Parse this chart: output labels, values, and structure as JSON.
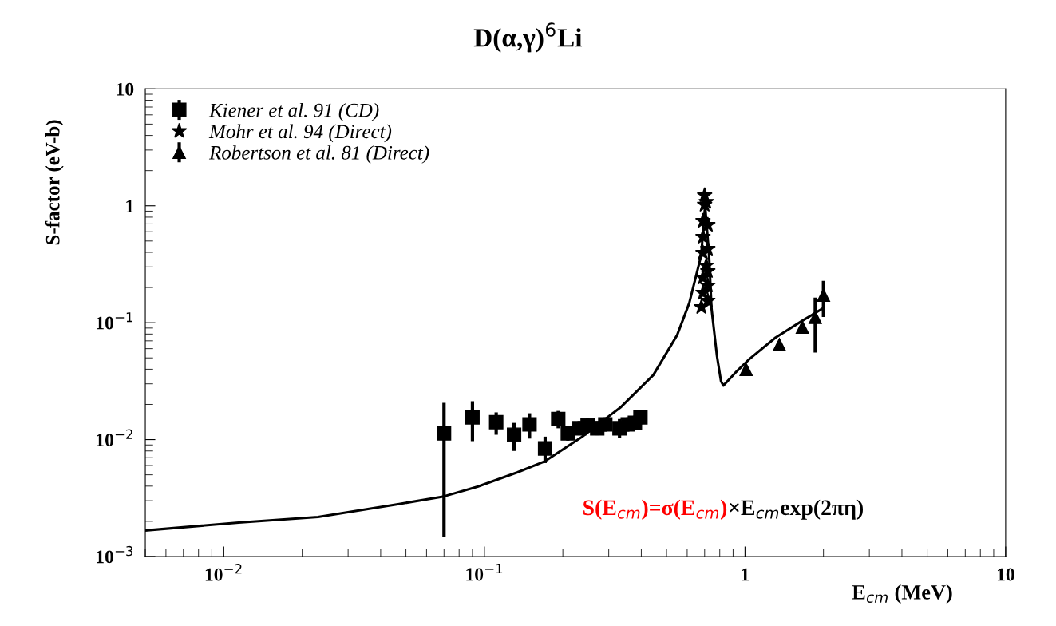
{
  "chart_data": {
    "type": "scatter",
    "title": "D(α,γ)$^{6}$Li",
    "xlabel": "E$_{cm}$ (MeV)",
    "ylabel": "S-factor (eV-b)",
    "log": "xy",
    "xlim": [
      0.005,
      10
    ],
    "ylim": [
      0.001,
      10
    ],
    "xticks": [
      {
        "value": 0.01,
        "label": "10$^{−2}$"
      },
      {
        "value": 0.1,
        "label": "10$^{−1}$"
      },
      {
        "value": 1,
        "label": "1"
      },
      {
        "value": 10,
        "label": "10"
      }
    ],
    "yticks": [
      {
        "value": 0.001,
        "label": "10$^{−3}$"
      },
      {
        "value": 0.01,
        "label": "10$^{−2}$"
      },
      {
        "value": 0.1,
        "label": "10$^{−1}$"
      },
      {
        "value": 1,
        "label": "1"
      },
      {
        "value": 10,
        "label": "10"
      }
    ],
    "grid": false,
    "legend": "top left",
    "annotations": [
      "S(E$_{cm}$)=σ(E$_{cm}$)",
      "×E$_{cm}$exp(2πη)"
    ],
    "series": [
      {
        "name": "Kiener et al. 91 (CD)",
        "color": "#000000",
        "marker": "square",
        "x": [
          0.07,
          0.09,
          0.111,
          0.13,
          0.149,
          0.171,
          0.192,
          0.209,
          0.231,
          0.249,
          0.271,
          0.291,
          0.33,
          0.355,
          0.378,
          0.397
        ],
        "values": [
          0.0113,
          0.0155,
          0.0141,
          0.011,
          0.0135,
          0.0084,
          0.015,
          0.0113,
          0.0125,
          0.0133,
          0.0125,
          0.0135,
          0.0125,
          0.0135,
          0.0139,
          0.0155
        ],
        "errors": [
          [
            0.00147,
            0.0206
          ],
          [
            0.0097,
            0.0213
          ],
          [
            0.011,
            0.0171
          ],
          [
            0.008,
            0.0139
          ],
          [
            0.0102,
            0.0168
          ],
          [
            0.0063,
            0.0106
          ],
          [
            0.0125,
            0.0176
          ],
          [
            0.0098,
            0.013
          ],
          [
            0.0109,
            0.0144
          ],
          [
            0.0116,
            0.0153
          ],
          [
            0.0109,
            0.0144
          ],
          [
            0.0117,
            0.0155
          ],
          [
            0.0104,
            0.015
          ],
          [
            0.0117,
            0.0155
          ],
          [
            0.0121,
            0.016
          ],
          [
            0.0135,
            0.0178
          ]
        ]
      },
      {
        "name": "Mohr et al. 94 (Direct)",
        "color": "#000000",
        "marker": "star",
        "x": [
          0.7,
          0.71,
          0.7,
          0.69,
          0.72,
          0.69,
          0.72,
          0.69,
          0.71,
          0.72,
          0.69,
          0.72,
          0.69,
          0.72,
          0.68
        ],
        "values": [
          1.23,
          1.08,
          1.02,
          0.742,
          0.686,
          0.542,
          0.428,
          0.396,
          0.308,
          0.276,
          0.243,
          0.208,
          0.18,
          0.154,
          0.136
        ]
      },
      {
        "name": "Robertson et al. 81 (Direct)",
        "color": "#000000",
        "marker": "triangle",
        "x": [
          1.01,
          1.355,
          1.66,
          1.86,
          2.0
        ],
        "values": [
          0.0399,
          0.0649,
          0.0917,
          0.111,
          0.172
        ],
        "errors": [
          null,
          null,
          null,
          [
            0.0555,
            0.164
          ],
          [
            0.112,
            0.228
          ]
        ]
      },
      {
        "type": "line",
        "color": "#000000",
        "marker": "none",
        "x": [
          0.005,
          0.0114,
          0.023,
          0.0466,
          0.07,
          0.0942,
          0.134,
          0.171,
          0.236,
          0.335,
          0.445,
          0.549,
          0.611,
          0.679,
          0.703,
          0.728,
          0.744,
          0.781,
          0.809,
          0.826,
          0.919,
          1.04,
          1.31,
          1.66,
          1.98
        ],
        "values": [
          0.00167,
          0.00195,
          0.00218,
          0.0028,
          0.00327,
          0.00396,
          0.00525,
          0.00654,
          0.0105,
          0.0191,
          0.0357,
          0.0784,
          0.147,
          0.377,
          1.0,
          0.377,
          0.132,
          0.0513,
          0.0315,
          0.029,
          0.0374,
          0.0489,
          0.0747,
          0.104,
          0.132
        ]
      }
    ]
  }
}
